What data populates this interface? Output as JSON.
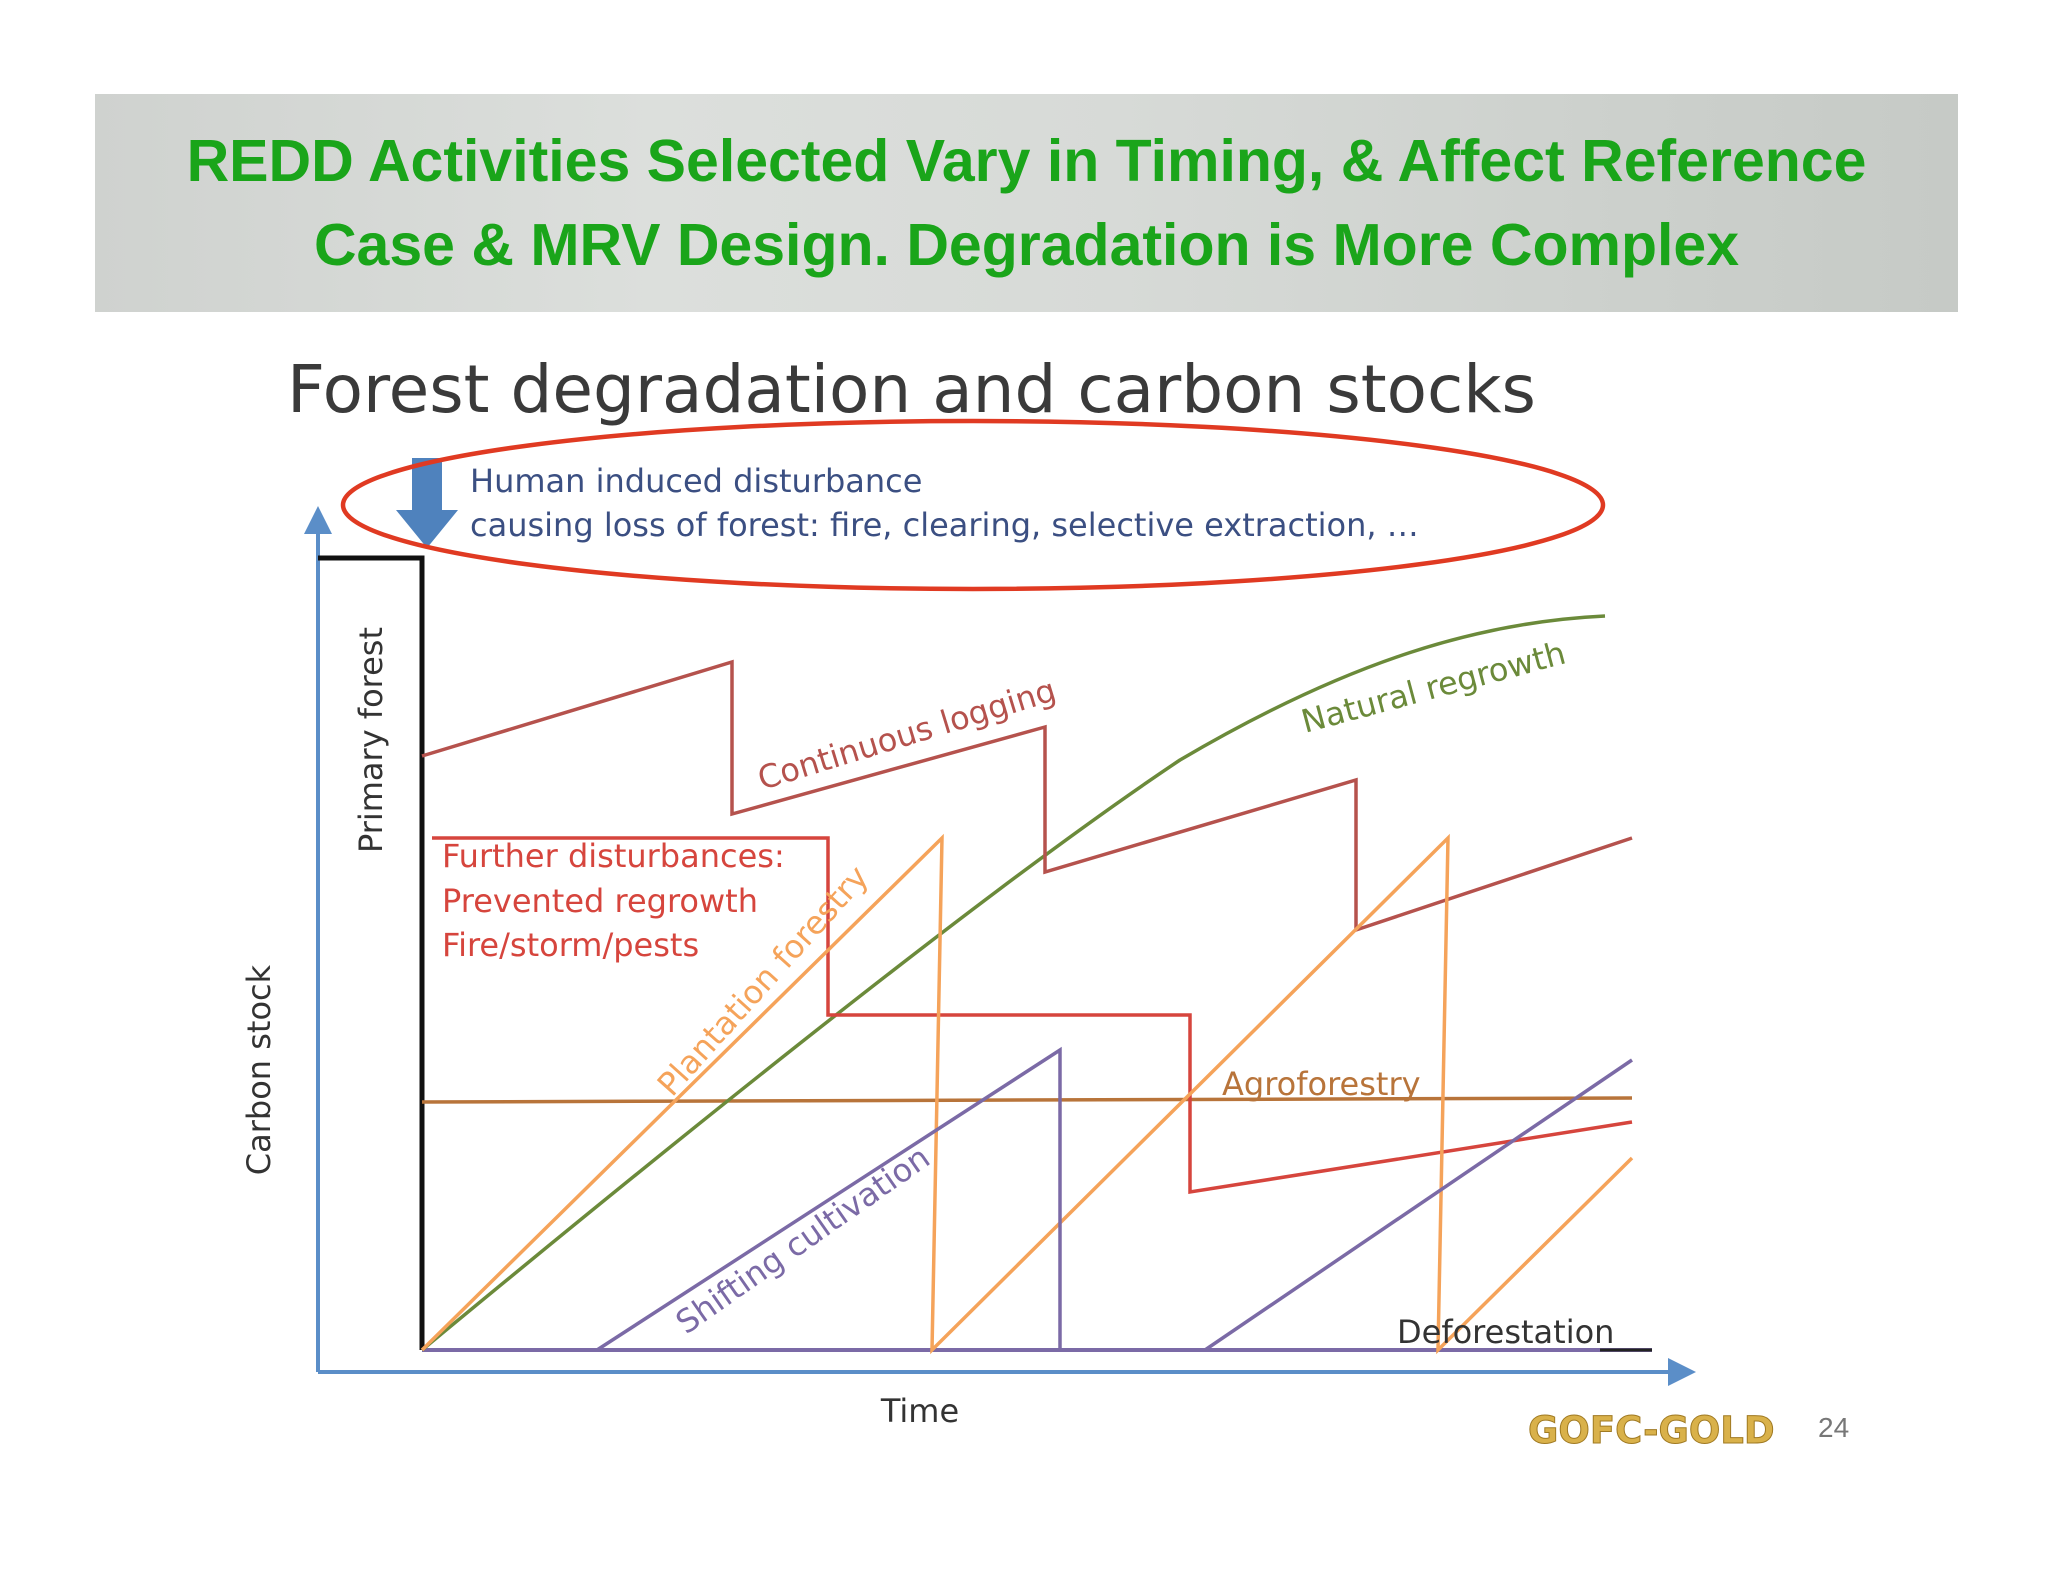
{
  "slide": {
    "title_line1": "REDD Activities Selected Vary in Timing, & Affect Reference",
    "title_line2": "Case & MRV Design.  Degradation is More Complex",
    "title_color": "#1aa51a",
    "page_number": "24",
    "logo_text": "GOFC-GOLD",
    "logo_color": "#d9b14a"
  },
  "diagram": {
    "heading": "Forest degradation and carbon stocks",
    "disturbance_line1": "Human induced disturbance",
    "disturbance_line2": "causing loss of forest: fire, clearing, selective extraction, …",
    "y_axis_label": "Carbon stock",
    "x_axis_label": "Time",
    "primary_forest_label": "Primary forest",
    "continuous_logging_label": "Continuous logging",
    "natural_regrowth_label": "Natural regrowth",
    "further_line1": "Further disturbances:",
    "further_line2": "Prevented regrowth",
    "further_line3": "Fire/storm/pests",
    "plantation_label": "Plantation forestry",
    "agroforestry_label": "Agroforestry",
    "shifting_label": "Shifting cultivation",
    "deforestation_label": "Deforestation",
    "colors": {
      "arrow_blue": "#4f82bd",
      "axis": "#5b8ec8",
      "logging": "#b5524d",
      "regrowth": "#6b8a3a",
      "further": "#d6453d",
      "plantation": "#f5a35a",
      "agroforestry": "#b8743a",
      "shifting": "#7b6aa6",
      "highlight_ellipse": "#e03a22"
    }
  }
}
